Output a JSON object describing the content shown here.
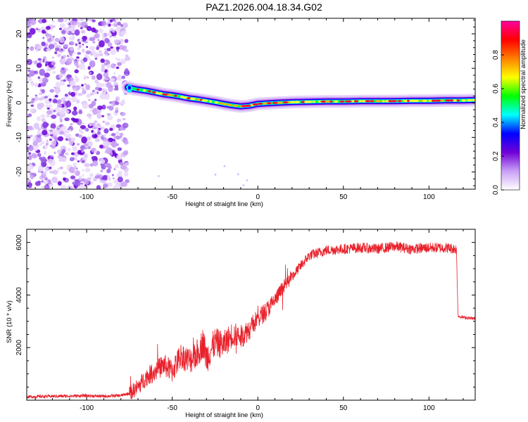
{
  "title": "PAZ1.2026.004.18.34.G02",
  "chart_data": [
    {
      "type": "heatmap",
      "xlabel": "Height of straight line (km)",
      "ylabel": "Frequency (Hz)",
      "xlim": [
        -135,
        127
      ],
      "ylim": [
        -25,
        24.5
      ],
      "xticks": [
        -100,
        -50,
        0,
        50,
        100
      ],
      "xtick_labels": [
        "-100",
        "-50",
        "0",
        "50",
        "100"
      ],
      "yticks": [
        -20,
        -10,
        0,
        10,
        20
      ],
      "ytick_labels": [
        "-20",
        "-10",
        "0",
        "10",
        "20"
      ],
      "noise_region_x": [
        -135,
        -76
      ],
      "ridge": {
        "x": [
          -76,
          -72,
          -65,
          -60,
          -55,
          -50,
          -45,
          -40,
          -35,
          -30,
          -25,
          -20,
          -15,
          -10,
          -5,
          0,
          10,
          20,
          30,
          40,
          50,
          60,
          70,
          80,
          90,
          100,
          110,
          120,
          127
        ],
        "freq_hz": [
          4.5,
          4.0,
          3.5,
          3.0,
          2.5,
          2.2,
          1.8,
          1.3,
          1.0,
          0.6,
          0.2,
          -0.3,
          -0.7,
          -1.0,
          -0.8,
          -0.3,
          0.0,
          0.2,
          0.3,
          0.4,
          0.4,
          0.5,
          0.5,
          0.5,
          0.6,
          0.6,
          0.7,
          0.7,
          0.8
        ]
      },
      "colorbar": {
        "label": "Normalized spectral amplitude",
        "range": [
          0,
          1
        ],
        "ticks": [
          0.0,
          0.2,
          0.4,
          0.6,
          0.8
        ],
        "tick_labels": [
          "0.0",
          "0.2",
          "0.4",
          "0.6",
          "0.8"
        ],
        "colors": [
          "#ffffff",
          "#c9a0f5",
          "#7000d8",
          "#0000ff",
          "#00ffff",
          "#00ff00",
          "#ffff00",
          "#ff8000",
          "#ff0000",
          "#ff00a0"
        ]
      }
    },
    {
      "type": "line",
      "xlabel": "Height of straight line (km)",
      "ylabel": "SNR (10 * v/v)",
      "xlim": [
        -135,
        127
      ],
      "ylim": [
        0,
        6500
      ],
      "xticks": [
        -100,
        -50,
        0,
        50,
        100
      ],
      "xtick_labels": [
        "-100",
        "-50",
        "0",
        "50",
        "100"
      ],
      "yticks": [
        2000,
        4000,
        6000
      ],
      "ytick_labels": [
        "2000",
        "4000",
        "6000"
      ],
      "series": [
        {
          "name": "SNR",
          "color": "#e8202a",
          "x": [
            -135,
            -120,
            -100,
            -90,
            -80,
            -75,
            -70,
            -65,
            -60,
            -55,
            -50,
            -45,
            -40,
            -35,
            -32,
            -30,
            -25,
            -20,
            -15,
            -10,
            -5,
            0,
            5,
            10,
            15,
            20,
            25,
            30,
            40,
            50,
            60,
            70,
            80,
            90,
            100,
            110,
            116,
            117,
            120,
            127
          ],
          "values": [
            130,
            150,
            170,
            150,
            180,
            260,
            500,
            900,
            1100,
            1350,
            1100,
            1700,
            1500,
            1800,
            2200,
            1600,
            2200,
            2100,
            2500,
            2400,
            2700,
            3100,
            3400,
            3800,
            4300,
            4700,
            5100,
            5500,
            5700,
            5750,
            5800,
            5750,
            5850,
            5750,
            5800,
            5800,
            5750,
            3200,
            3150,
            3100
          ]
        }
      ]
    }
  ]
}
